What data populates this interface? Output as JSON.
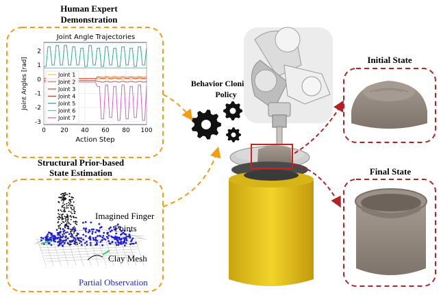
{
  "demo": {
    "title_line1": "Human Expert",
    "title_line2": "Demonstration"
  },
  "state_est": {
    "title_line1": "Structural Prior-based",
    "title_line2": "State Estimation",
    "label_fingers_line1": "Imagined Finger",
    "label_fingers_line2": "Points",
    "label_mesh": "Clay Mesh",
    "label_partial": "Partial Observation"
  },
  "policy": {
    "line1": "Behavior Cloning",
    "line2": "Policy"
  },
  "states": {
    "initial": "Initial State",
    "final": "Final State"
  },
  "colors": {
    "orange_dash": "#f39c12",
    "red_dash": "#b22222",
    "partial_blue": "#1f1fd6",
    "stand_yellow": "#e8c21a",
    "clay": "#9b8f85"
  },
  "chart_data": {
    "type": "line",
    "title": "Joint Angle Trajectories",
    "xlabel": "Action Step",
    "ylabel": "Joint Angles [rad]",
    "xlim": [
      0,
      100
    ],
    "ylim": [
      -3.2,
      2.6
    ],
    "xticks": [
      "0",
      "20",
      "40",
      "60",
      "80",
      "100"
    ],
    "yticks": [
      "2",
      "1",
      "0",
      "-1",
      "-2",
      "-3"
    ],
    "x": [
      0,
      4,
      8,
      12,
      16,
      20,
      24,
      28,
      32,
      36,
      40,
      44,
      48,
      52,
      56,
      60,
      64,
      68,
      72,
      76,
      80,
      84,
      88,
      92,
      96,
      100
    ],
    "series": [
      {
        "name": "Joint 1",
        "color": "#e6c84a",
        "values": [
          0,
          0,
          0.05,
          0,
          0,
          0.05,
          0,
          0,
          0.05,
          0,
          0,
          0.05,
          0,
          0,
          0.05,
          0,
          0,
          0.05,
          0,
          0,
          0.05,
          0,
          0,
          0.05,
          0,
          0
        ]
      },
      {
        "name": "Joint 2",
        "color": "#e67e22",
        "values": [
          -0.1,
          -0.1,
          -0.1,
          -0.1,
          -0.1,
          -0.1,
          -0.1,
          -0.1,
          -0.1,
          -0.1,
          -0.1,
          -0.1,
          -0.1,
          0.2,
          0.15,
          0.2,
          0.15,
          0.2,
          0.15,
          0.2,
          0.15,
          0.2,
          0.15,
          0.2,
          0.15,
          0.2
        ]
      },
      {
        "name": "Joint 3",
        "color": "#e0402a",
        "values": [
          0.05,
          0.05,
          0.05,
          0.05,
          0.05,
          0.05,
          0.05,
          0.05,
          0.05,
          0.05,
          0.05,
          0.05,
          0.05,
          0.1,
          0.05,
          0.1,
          0.05,
          0.1,
          0.05,
          0.1,
          0.05,
          0.1,
          0.05,
          0.1,
          0.05,
          0.1
        ]
      },
      {
        "name": "Joint 4",
        "color": "#c0392b",
        "values": [
          -0.1,
          -0.1,
          -0.1,
          -0.1,
          -0.1,
          -0.1,
          -0.1,
          -0.1,
          -0.1,
          -0.1,
          -0.1,
          -0.1,
          -0.1,
          -0.15,
          -0.2,
          -0.15,
          -0.2,
          -0.15,
          -0.2,
          -0.15,
          -0.2,
          -0.15,
          -0.2,
          -0.15,
          -0.2,
          -0.15
        ]
      },
      {
        "name": "Joint 5",
        "color": "#17a589",
        "values": [
          0.9,
          2.3,
          1.0,
          2.4,
          1.0,
          2.4,
          1.0,
          2.3,
          1.0,
          2.2,
          0.9,
          2.4,
          1.0,
          2.2,
          0.9,
          2.3,
          1.0,
          2.2,
          0.9,
          2.3,
          1.0,
          2.2,
          0.9,
          2.3,
          1.0,
          2.2
        ]
      },
      {
        "name": "Joint 6",
        "color": "#48c9b0",
        "values": [
          0.8,
          0.8,
          0.8,
          0.8,
          0.8,
          0.8,
          0.8,
          0.8,
          0.8,
          0.8,
          0.8,
          0.8,
          0.8,
          0.8,
          0.8,
          0.8,
          0.8,
          0.8,
          0.8,
          0.8,
          0.8,
          0.8,
          0.8,
          0.8,
          0.8,
          0.8
        ]
      },
      {
        "name": "Joint 7",
        "color": "#d94fc0",
        "values": [
          -0.2,
          -0.2,
          -0.2,
          -0.2,
          -0.2,
          -0.2,
          -0.2,
          -0.2,
          -0.2,
          -0.2,
          -0.2,
          -0.2,
          -0.2,
          -0.5,
          -2.8,
          -0.4,
          -2.7,
          -0.5,
          -2.9,
          -0.4,
          -2.8,
          -0.5,
          -2.7,
          -0.4,
          -2.9,
          -0.5
        ]
      }
    ],
    "legend": "left",
    "grid": true
  }
}
